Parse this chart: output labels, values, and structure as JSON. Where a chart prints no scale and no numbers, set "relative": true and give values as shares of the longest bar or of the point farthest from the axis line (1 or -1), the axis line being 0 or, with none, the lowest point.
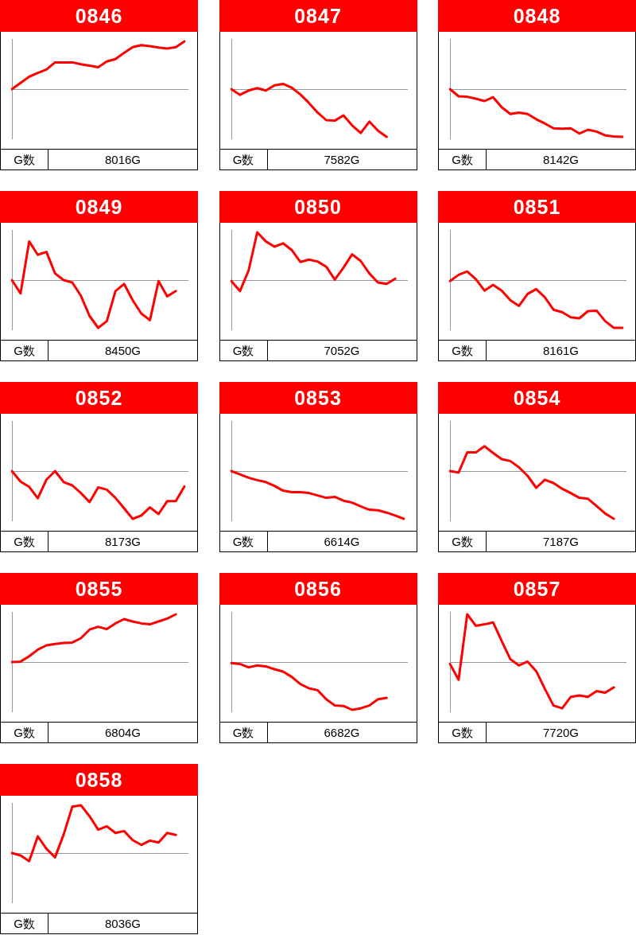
{
  "chart_data": [
    {
      "type": "line",
      "title": "0846",
      "relative": true,
      "marker": "none",
      "color": "#ff0000",
      "annotations": [
        "G数",
        "8016G"
      ],
      "categories": [
        null,
        null,
        null,
        null,
        null,
        null,
        null,
        null,
        null,
        null,
        null,
        null,
        null,
        null,
        null,
        null,
        null,
        null,
        null,
        null,
        null
      ],
      "values": [
        0,
        0.13,
        0.26,
        0.34,
        0.41,
        0.56,
        0.56,
        0.56,
        0.52,
        0.49,
        0.46,
        0.58,
        0.63,
        0.76,
        0.88,
        0.92,
        0.9,
        0.87,
        0.85,
        0.88,
        1
      ]
    },
    {
      "type": "line",
      "title": "0847",
      "relative": true,
      "marker": "none",
      "color": "#ff0000",
      "annotations": [
        "G数",
        "7582G"
      ],
      "categories": [
        null,
        null,
        null,
        null,
        null,
        null,
        null,
        null,
        null,
        null,
        null,
        null,
        null,
        null,
        null,
        null,
        null,
        null,
        null,
        null,
        null
      ],
      "values": [
        0,
        -0.12,
        -0.03,
        0.02,
        -0.03,
        0.08,
        0.11,
        0.03,
        -0.11,
        -0.29,
        -0.49,
        -0.65,
        -0.66,
        -0.55,
        -0.76,
        -0.92,
        -0.68,
        -0.87,
        -1,
        null,
        null
      ]
    },
    {
      "type": "line",
      "title": "0848",
      "relative": true,
      "marker": "none",
      "color": "#ff0000",
      "annotations": [
        "G数",
        "8142G"
      ],
      "categories": [
        null,
        null,
        null,
        null,
        null,
        null,
        null,
        null,
        null,
        null,
        null,
        null,
        null,
        null,
        null,
        null,
        null,
        null,
        null,
        null,
        null
      ],
      "values": [
        0,
        -0.15,
        -0.16,
        -0.2,
        -0.25,
        -0.17,
        -0.38,
        -0.52,
        -0.49,
        -0.52,
        -0.63,
        -0.72,
        -0.82,
        -0.83,
        -0.82,
        -0.93,
        -0.85,
        -0.89,
        -0.97,
        -0.99,
        -1
      ]
    },
    {
      "type": "line",
      "title": "0849",
      "relative": true,
      "marker": "none",
      "color": "#ff0000",
      "annotations": [
        "G数",
        "8450G"
      ],
      "categories": [
        null,
        null,
        null,
        null,
        null,
        null,
        null,
        null,
        null,
        null,
        null,
        null,
        null,
        null,
        null,
        null,
        null,
        null,
        null,
        null,
        null
      ],
      "values": [
        0,
        -0.28,
        0.81,
        0.53,
        0.59,
        0.14,
        0,
        -0.05,
        -0.33,
        -0.75,
        -1,
        -0.86,
        -0.23,
        -0.08,
        -0.42,
        -0.7,
        -0.84,
        -0.02,
        -0.34,
        -0.23,
        null
      ]
    },
    {
      "type": "line",
      "title": "0850",
      "relative": true,
      "marker": "none",
      "color": "#ff0000",
      "annotations": [
        "G数",
        "7052G"
      ],
      "categories": [
        null,
        null,
        null,
        null,
        null,
        null,
        null,
        null,
        null,
        null,
        null,
        null,
        null,
        null,
        null,
        null,
        null,
        null,
        null,
        null,
        null
      ],
      "values": [
        -0.02,
        -0.23,
        0.2,
        1,
        0.81,
        0.7,
        0.77,
        0.63,
        0.38,
        0.43,
        0.39,
        0.28,
        0.01,
        0.26,
        0.54,
        0.4,
        0.14,
        -0.05,
        -0.08,
        0.03,
        null
      ]
    },
    {
      "type": "line",
      "title": "0851",
      "relative": true,
      "marker": "none",
      "color": "#ff0000",
      "annotations": [
        "G数",
        "8161G"
      ],
      "categories": [
        null,
        null,
        null,
        null,
        null,
        null,
        null,
        null,
        null,
        null,
        null,
        null,
        null,
        null,
        null,
        null,
        null,
        null,
        null,
        null,
        null
      ],
      "values": [
        -0.02,
        0.11,
        0.18,
        0.02,
        -0.22,
        -0.1,
        -0.22,
        -0.42,
        -0.54,
        -0.29,
        -0.19,
        -0.36,
        -0.62,
        -0.67,
        -0.78,
        -0.8,
        -0.65,
        -0.64,
        -0.86,
        -1,
        -1
      ]
    },
    {
      "type": "line",
      "title": "0852",
      "relative": true,
      "marker": "none",
      "color": "#ff0000",
      "annotations": [
        "G数",
        "8173G"
      ],
      "categories": [
        null,
        null,
        null,
        null,
        null,
        null,
        null,
        null,
        null,
        null,
        null,
        null,
        null,
        null,
        null,
        null,
        null,
        null,
        null,
        null,
        null
      ],
      "values": [
        0,
        -0.22,
        -0.33,
        -0.57,
        -0.18,
        0,
        -0.23,
        -0.3,
        -0.46,
        -0.65,
        -0.34,
        -0.39,
        -0.56,
        -0.78,
        -1,
        -0.93,
        -0.76,
        -0.9,
        -0.63,
        -0.63,
        -0.32
      ]
    },
    {
      "type": "line",
      "title": "0853",
      "relative": true,
      "marker": "none",
      "color": "#ff0000",
      "annotations": [
        "G数",
        "6614G"
      ],
      "categories": [
        null,
        null,
        null,
        null,
        null,
        null,
        null,
        null,
        null,
        null,
        null,
        null,
        null,
        null,
        null,
        null,
        null,
        null,
        null,
        null,
        null
      ],
      "values": [
        0,
        -0.07,
        -0.14,
        -0.19,
        -0.23,
        -0.31,
        -0.41,
        -0.44,
        -0.44,
        -0.46,
        -0.51,
        -0.56,
        -0.54,
        -0.62,
        -0.66,
        -0.74,
        -0.81,
        -0.82,
        -0.87,
        -0.93,
        -1
      ]
    },
    {
      "type": "line",
      "title": "0854",
      "relative": true,
      "marker": "none",
      "color": "#ff0000",
      "annotations": [
        "G数",
        "7187G"
      ],
      "categories": [
        null,
        null,
        null,
        null,
        null,
        null,
        null,
        null,
        null,
        null,
        null,
        null,
        null,
        null,
        null,
        null,
        null,
        null,
        null,
        null,
        null
      ],
      "values": [
        0,
        -0.03,
        0.39,
        0.39,
        0.52,
        0.38,
        0.25,
        0.21,
        0.08,
        -0.1,
        -0.35,
        -0.18,
        -0.25,
        -0.37,
        -0.46,
        -0.56,
        -0.58,
        -0.73,
        -0.89,
        -1,
        null
      ]
    },
    {
      "type": "line",
      "title": "0855",
      "relative": true,
      "marker": "none",
      "color": "#ff0000",
      "annotations": [
        "G数",
        "6804G"
      ],
      "categories": [
        null,
        null,
        null,
        null,
        null,
        null,
        null,
        null,
        null,
        null,
        null,
        null,
        null,
        null,
        null,
        null,
        null,
        null,
        null,
        null,
        null
      ],
      "values": [
        0,
        0.01,
        0.12,
        0.26,
        0.35,
        0.38,
        0.4,
        0.41,
        0.5,
        0.68,
        0.74,
        0.69,
        0.81,
        0.9,
        0.85,
        0.81,
        0.79,
        0.85,
        0.91,
        1,
        null
      ]
    },
    {
      "type": "line",
      "title": "0856",
      "relative": true,
      "marker": "none",
      "color": "#ff0000",
      "annotations": [
        "G数",
        "6682G"
      ],
      "categories": [
        null,
        null,
        null,
        null,
        null,
        null,
        null,
        null,
        null,
        null,
        null,
        null,
        null,
        null,
        null,
        null,
        null,
        null,
        null,
        null,
        null
      ],
      "values": [
        -0.02,
        -0.04,
        -0.11,
        -0.07,
        -0.09,
        -0.15,
        -0.2,
        -0.31,
        -0.46,
        -0.55,
        -0.59,
        -0.78,
        -0.91,
        -0.92,
        -1,
        -0.97,
        -0.91,
        -0.78,
        -0.75,
        null,
        null
      ]
    },
    {
      "type": "line",
      "title": "0857",
      "relative": true,
      "marker": "none",
      "color": "#ff0000",
      "annotations": [
        "G数",
        "7720G"
      ],
      "categories": [
        null,
        null,
        null,
        null,
        null,
        null,
        null,
        null,
        null,
        null,
        null,
        null,
        null,
        null,
        null,
        null,
        null,
        null,
        null,
        null,
        null
      ],
      "values": [
        -0.04,
        -0.37,
        1,
        0.76,
        0.79,
        0.83,
        0.44,
        0.06,
        -0.07,
        0.01,
        -0.19,
        -0.56,
        -0.91,
        -0.97,
        -0.73,
        -0.7,
        -0.73,
        -0.61,
        -0.64,
        -0.53,
        null
      ]
    },
    {
      "type": "line",
      "title": "0858",
      "relative": true,
      "marker": "none",
      "color": "#ff0000",
      "annotations": [
        "G数",
        "8036G"
      ],
      "categories": [
        null,
        null,
        null,
        null,
        null,
        null,
        null,
        null,
        null,
        null,
        null,
        null,
        null,
        null,
        null,
        null,
        null,
        null,
        null,
        null,
        null
      ],
      "values": [
        0,
        -0.05,
        -0.17,
        0.35,
        0.09,
        -0.09,
        0.39,
        0.97,
        1,
        0.77,
        0.49,
        0.56,
        0.42,
        0.46,
        0.27,
        0.17,
        0.26,
        0.22,
        0.42,
        0.38,
        null
      ]
    }
  ]
}
